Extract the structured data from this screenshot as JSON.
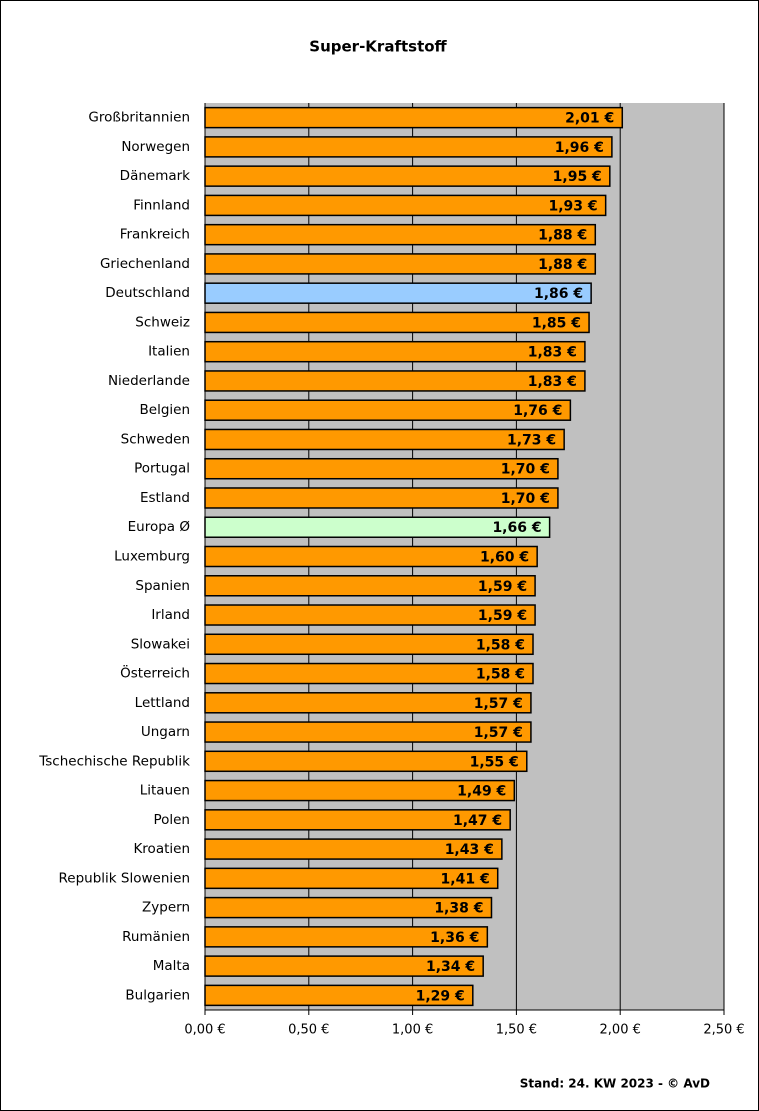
{
  "chart_data": {
    "type": "barh",
    "title": "Super-Kraftstoff",
    "note": "Stand: 24. KW 2023 - © AvD",
    "categories": [
      "Großbritannien",
      "Norwegen",
      "Dänemark",
      "Finnland",
      "Frankreich",
      "Griechenland",
      "Deutschland",
      "Schweiz",
      "Italien",
      "Niederlande",
      "Belgien",
      "Schweden",
      "Portugal",
      "Estland",
      "Europa Ø",
      "Luxemburg",
      "Spanien",
      "Irland",
      "Slowakei",
      "Österreich",
      "Lettland",
      "Ungarn",
      "Tschechische Republik",
      "Litauen",
      "Polen",
      "Kroatien",
      "Republik Slowenien",
      "Zypern",
      "Rumänien",
      "Malta",
      "Bulgarien"
    ],
    "values": [
      2.01,
      1.96,
      1.95,
      1.93,
      1.88,
      1.88,
      1.86,
      1.85,
      1.83,
      1.83,
      1.76,
      1.73,
      1.7,
      1.7,
      1.66,
      1.6,
      1.59,
      1.59,
      1.58,
      1.58,
      1.57,
      1.57,
      1.55,
      1.49,
      1.47,
      1.43,
      1.41,
      1.38,
      1.36,
      1.34,
      1.29
    ],
    "value_labels": [
      "2,01 €",
      "1,96 €",
      "1,95 €",
      "1,93 €",
      "1,88 €",
      "1,88 €",
      "1,86 €",
      "1,85 €",
      "1,83 €",
      "1,83 €",
      "1,76 €",
      "1,73 €",
      "1,70 €",
      "1,70 €",
      "1,66 €",
      "1,60 €",
      "1,59 €",
      "1,59 €",
      "1,58 €",
      "1,58 €",
      "1,57 €",
      "1,57 €",
      "1,55 €",
      "1,49 €",
      "1,47 €",
      "1,43 €",
      "1,41 €",
      "1,38 €",
      "1,36 €",
      "1,34 €",
      "1,29 €"
    ],
    "colors": [
      "#ff9900",
      "#ff9900",
      "#ff9900",
      "#ff9900",
      "#ff9900",
      "#ff9900",
      "#99ccff",
      "#ff9900",
      "#ff9900",
      "#ff9900",
      "#ff9900",
      "#ff9900",
      "#ff9900",
      "#ff9900",
      "#ccffcc",
      "#ff9900",
      "#ff9900",
      "#ff9900",
      "#ff9900",
      "#ff9900",
      "#ff9900",
      "#ff9900",
      "#ff9900",
      "#ff9900",
      "#ff9900",
      "#ff9900",
      "#ff9900",
      "#ff9900",
      "#ff9900",
      "#ff9900",
      "#ff9900"
    ],
    "xlim": [
      0,
      2.5
    ],
    "xticks": [
      {
        "value": 0,
        "label": "0,00 €"
      },
      {
        "value": 0.5,
        "label": "0,50 €"
      },
      {
        "value": 1,
        "label": "1,00 €"
      },
      {
        "value": 1.5,
        "label": "1,50 €"
      },
      {
        "value": 2,
        "label": "2,00 €"
      },
      {
        "value": 2.5,
        "label": "2,50 €"
      }
    ],
    "grid": true,
    "plot_background": "#c0c0c0"
  }
}
